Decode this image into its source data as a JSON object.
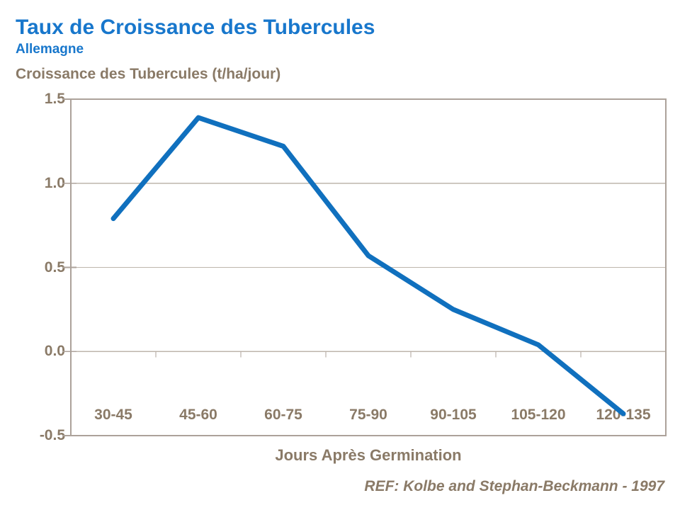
{
  "header": {
    "title": "Taux de Croissance des Tubercules",
    "subtitle": "Allemagne",
    "axis_top_label": "Croissance des Tubercules (t/ha/jour)"
  },
  "footer": {
    "reference": "REF: Kolbe and Stephan-Beckmann - 1997"
  },
  "chart_data": {
    "type": "line",
    "title": "Taux de Croissance des Tubercules",
    "subtitle": "Allemagne",
    "categories": [
      "30-45",
      "45-60",
      "60-75",
      "75-90",
      "90-105",
      "105-120",
      "120-135"
    ],
    "values": [
      0.79,
      1.39,
      1.22,
      0.57,
      0.25,
      0.04,
      -0.37
    ],
    "series_name": "Croissance des Tubercules",
    "xlabel": "Jours Après Germination",
    "ylabel": "Croissance des Tubercules (t/ha/jour)",
    "ylim": [
      -0.5,
      1.5
    ],
    "ytick_labels": [
      "1.5",
      "1.0",
      "0.5",
      "0.0",
      "-0.5"
    ],
    "grid": true,
    "legend": false,
    "reference": "REF: Kolbe and Stephan-Beckmann - 1997"
  },
  "colors": {
    "title_blue": "#1877CC",
    "line_blue": "#1070BE",
    "text_brown": "#8A7A67",
    "border": "#ACA29A",
    "gridline": "#BEB6AC"
  }
}
